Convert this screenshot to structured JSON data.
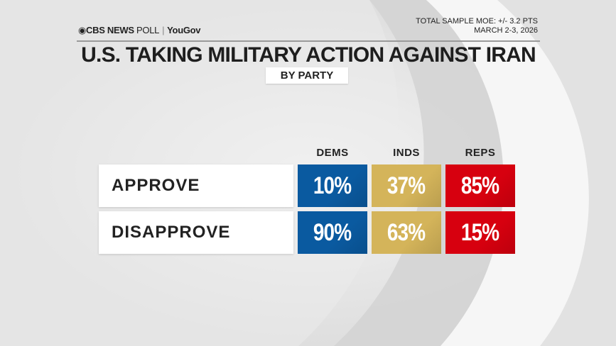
{
  "header": {
    "logo_text": "CBS NEWS POLL | YouGov",
    "brand": "CBS NEWS",
    "poll": "POLL",
    "partner": "YouGov",
    "moe": "TOTAL SAMPLE MOE: +/- 3.2 PTS",
    "dates": "MARCH 2-3, 2026",
    "title": "U.S. TAKING MILITARY ACTION AGAINST IRAN",
    "subtitle": "BY PARTY"
  },
  "chart_data": {
    "type": "table",
    "title": "U.S. TAKING MILITARY ACTION AGAINST IRAN",
    "subtitle": "BY PARTY",
    "columns": [
      "DEMS",
      "INDS",
      "REPS"
    ],
    "column_colors": [
      "#0a5aa0",
      "#d4b45a",
      "#d7000f"
    ],
    "rows": [
      {
        "label": "APPROVE",
        "values": [
          10,
          37,
          85
        ],
        "display": [
          "10%",
          "37%",
          "85%"
        ]
      },
      {
        "label": "DISAPPROVE",
        "values": [
          90,
          63,
          15
        ],
        "display": [
          "90%",
          "63%",
          "15%"
        ]
      }
    ],
    "unit": "%"
  }
}
